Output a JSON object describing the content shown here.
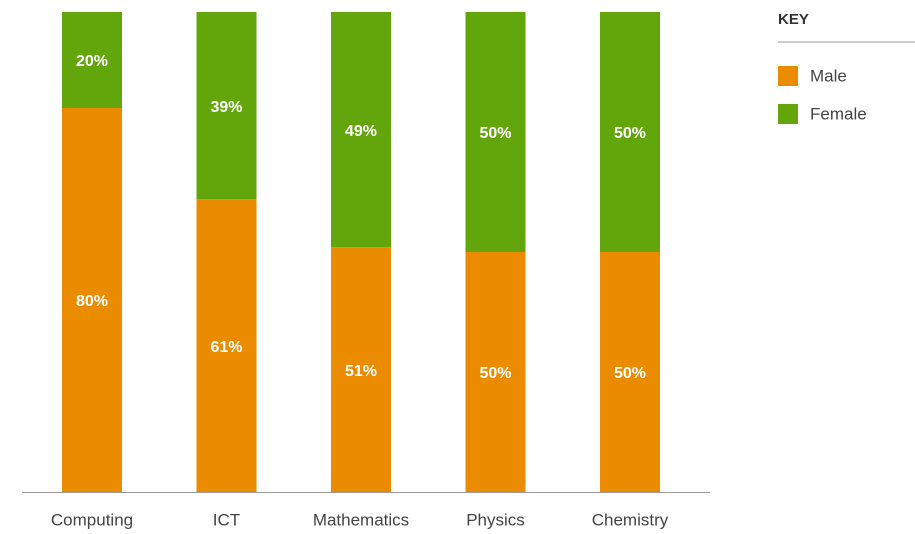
{
  "chart_data": {
    "type": "stacked_bar",
    "legend_title": "KEY",
    "categories": [
      "Computing",
      "ICT",
      "Mathematics",
      "Physics",
      "Chemistry"
    ],
    "series": [
      {
        "name": "Male",
        "color": "#eb8c00",
        "values": [
          80,
          61,
          51,
          50,
          50
        ],
        "value_labels": [
          "80%",
          "61%",
          "51%",
          "50%",
          "50%"
        ]
      },
      {
        "name": "Female",
        "color": "#63a60b",
        "values": [
          20,
          39,
          49,
          50,
          50
        ],
        "value_labels": [
          "20%",
          "39%",
          "49%",
          "50%",
          "50%"
        ]
      }
    ],
    "ylim": [
      0,
      100
    ],
    "grid": false,
    "legend": "right"
  }
}
